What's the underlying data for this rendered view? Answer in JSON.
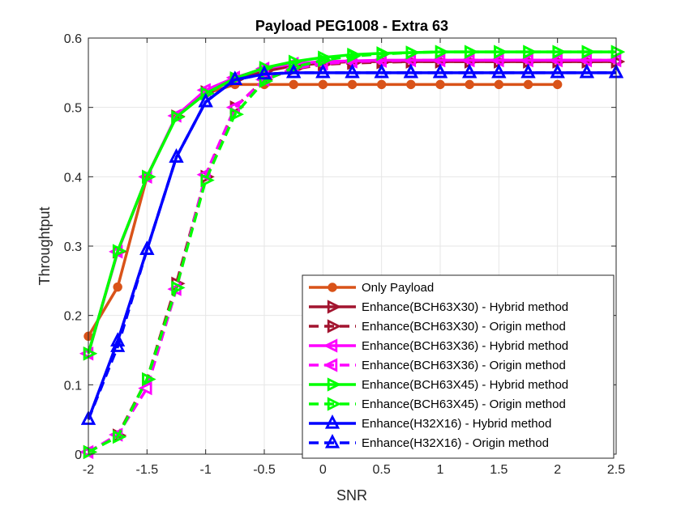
{
  "chart_data": {
    "type": "line",
    "title": "Payload PEG1008 - Extra 63",
    "xlabel": "SNR",
    "ylabel": "Throughtput",
    "xlim": [
      -2,
      2.5
    ],
    "ylim": [
      0,
      0.6
    ],
    "xticks": [
      -2,
      -1.5,
      -1,
      -0.5,
      0,
      0.5,
      1,
      1.5,
      2,
      2.5
    ],
    "xtick_labels": [
      "-2",
      "-1.5",
      "-1",
      "-0.5",
      "0",
      "0.5",
      "1",
      "1.5",
      "2",
      "2.5"
    ],
    "yticks": [
      0,
      0.1,
      0.2,
      0.3,
      0.4,
      0.5,
      0.6
    ],
    "ytick_labels": [
      "0",
      "0.1",
      "0.2",
      "0.3",
      "0.4",
      "0.5",
      "0.6"
    ],
    "grid": true,
    "legend_position": "bottom-right",
    "series": [
      {
        "name": "Only Payload",
        "color": "#D95319",
        "dash": "solid",
        "marker": "circle",
        "filled": true,
        "x": [
          -2,
          -1.75,
          -1.5,
          -1.25,
          -1,
          -0.75,
          -0.5,
          -0.25,
          0,
          0.25,
          0.5,
          0.75,
          1,
          1.25,
          1.5,
          1.75,
          2
        ],
        "y": [
          0.17,
          0.241,
          0.4,
          0.487,
          0.52,
          0.533,
          0.533,
          0.533,
          0.533,
          0.533,
          0.533,
          0.533,
          0.533,
          0.533,
          0.533,
          0.533,
          0.533
        ]
      },
      {
        "name": "Enhance(BCH63X30) - Hybrid method",
        "color": "#A2142F",
        "dash": "solid",
        "marker": "triangle-right",
        "filled": false,
        "x": [
          -2,
          -1.75,
          -1.5,
          -1.25,
          -1,
          -0.75,
          -0.5,
          -0.25,
          0,
          0.25,
          0.5,
          0.75,
          1,
          1.25,
          1.5,
          1.75,
          2,
          2.25,
          2.5
        ],
        "y": [
          0.145,
          0.292,
          0.4,
          0.487,
          0.522,
          0.54,
          0.552,
          0.56,
          0.564,
          0.566,
          0.566,
          0.566,
          0.566,
          0.566,
          0.566,
          0.566,
          0.566,
          0.566,
          0.566
        ]
      },
      {
        "name": "Enhance(BCH63X30) - Origin method",
        "color": "#A2142F",
        "dash": "dashed",
        "marker": "triangle-right",
        "filled": false,
        "x": [
          -2,
          -1.75,
          -1.5,
          -1.25,
          -1,
          -0.75,
          -0.5,
          -0.25,
          0,
          0.25,
          0.5,
          0.75,
          1,
          1.25,
          1.5,
          1.75,
          2,
          2.25,
          2.5
        ],
        "y": [
          0.003,
          0.027,
          0.108,
          0.246,
          0.4,
          0.5,
          0.54,
          0.555,
          0.562,
          0.564,
          0.565,
          0.566,
          0.566,
          0.566,
          0.566,
          0.566,
          0.566,
          0.566,
          0.566
        ]
      },
      {
        "name": "Enhance(BCH63X36) - Hybrid method",
        "color": "#FF00FF",
        "dash": "solid",
        "marker": "triangle-left",
        "filled": false,
        "x": [
          -2,
          -1.75,
          -1.5,
          -1.25,
          -1,
          -0.75,
          -0.5,
          -0.25,
          0,
          0.25,
          0.5,
          0.75,
          1,
          1.25,
          1.5,
          1.75,
          2,
          2.25,
          2.5
        ],
        "y": [
          0.145,
          0.292,
          0.4,
          0.488,
          0.525,
          0.543,
          0.556,
          0.563,
          0.566,
          0.567,
          0.568,
          0.568,
          0.568,
          0.568,
          0.568,
          0.568,
          0.568,
          0.568,
          0.568
        ]
      },
      {
        "name": "Enhance(BCH63X36) - Origin method",
        "color": "#FF00FF",
        "dash": "dashed",
        "marker": "triangle-left",
        "filled": false,
        "x": [
          -2,
          -1.75,
          -1.5,
          -1.25,
          -1,
          -0.75,
          -0.5,
          -0.25,
          0,
          0.25,
          0.5,
          0.75,
          1,
          1.25,
          1.5,
          1.75,
          2,
          2.25,
          2.5
        ],
        "y": [
          0.003,
          0.028,
          0.095,
          0.238,
          0.403,
          0.5,
          0.54,
          0.556,
          0.563,
          0.566,
          0.567,
          0.568,
          0.568,
          0.568,
          0.568,
          0.568,
          0.568,
          0.568,
          0.568
        ]
      },
      {
        "name": "Enhance(BCH63X45) - Hybrid method",
        "color": "#00FF00",
        "dash": "solid",
        "marker": "triangle-right",
        "filled": false,
        "x": [
          -2,
          -1.75,
          -1.5,
          -1.25,
          -1,
          -0.75,
          -0.5,
          -0.25,
          0,
          0.25,
          0.5,
          0.75,
          1,
          1.25,
          1.5,
          1.75,
          2,
          2.25,
          2.5
        ],
        "y": [
          0.145,
          0.293,
          0.4,
          0.486,
          0.52,
          0.542,
          0.557,
          0.566,
          0.572,
          0.576,
          0.578,
          0.579,
          0.58,
          0.58,
          0.58,
          0.58,
          0.58,
          0.58,
          0.58
        ]
      },
      {
        "name": "Enhance(BCH63X45) - Origin method",
        "color": "#00FF00",
        "dash": "dashed",
        "marker": "triangle-right",
        "filled": false,
        "x": [
          -2,
          -1.75,
          -1.5,
          -1.25,
          -1,
          -0.75,
          -0.5,
          -0.25,
          0,
          0.25,
          0.5,
          0.75,
          1,
          1.25,
          1.5,
          1.75,
          2,
          2.25,
          2.5
        ],
        "y": [
          0.003,
          0.025,
          0.108,
          0.24,
          0.395,
          0.49,
          0.538,
          0.558,
          0.568,
          0.574,
          0.577,
          0.579,
          0.58,
          0.58,
          0.58,
          0.58,
          0.58,
          0.58,
          0.58
        ]
      },
      {
        "name": "Enhance(H32X16) - Hybrid method",
        "color": "#0000FF",
        "dash": "solid",
        "marker": "triangle-up",
        "filled": false,
        "x": [
          -2,
          -1.75,
          -1.5,
          -1.25,
          -1,
          -0.75,
          -0.5,
          -0.25,
          0,
          0.25,
          0.5,
          0.75,
          1,
          1.25,
          1.5,
          1.75,
          2,
          2.25,
          2.5
        ],
        "y": [
          0.05,
          0.163,
          0.295,
          0.428,
          0.508,
          0.54,
          0.548,
          0.55,
          0.55,
          0.55,
          0.55,
          0.55,
          0.55,
          0.55,
          0.55,
          0.55,
          0.55,
          0.55,
          0.55
        ]
      },
      {
        "name": "Enhance(H32X16) - Origin method",
        "color": "#0000FF",
        "dash": "dashed",
        "marker": "triangle-up",
        "filled": false,
        "x": [
          -2,
          -1.75,
          -1.5,
          -1.25,
          -1,
          -0.75,
          -0.5,
          -0.25,
          0,
          0.25,
          0.5,
          0.75,
          1,
          1.25,
          1.5,
          1.75,
          2,
          2.25,
          2.5
        ],
        "y": [
          0.05,
          0.155,
          0.295,
          0.428,
          0.508,
          0.54,
          0.548,
          0.55,
          0.55,
          0.55,
          0.55,
          0.55,
          0.55,
          0.55,
          0.55,
          0.55,
          0.55,
          0.55,
          0.55
        ]
      }
    ]
  }
}
